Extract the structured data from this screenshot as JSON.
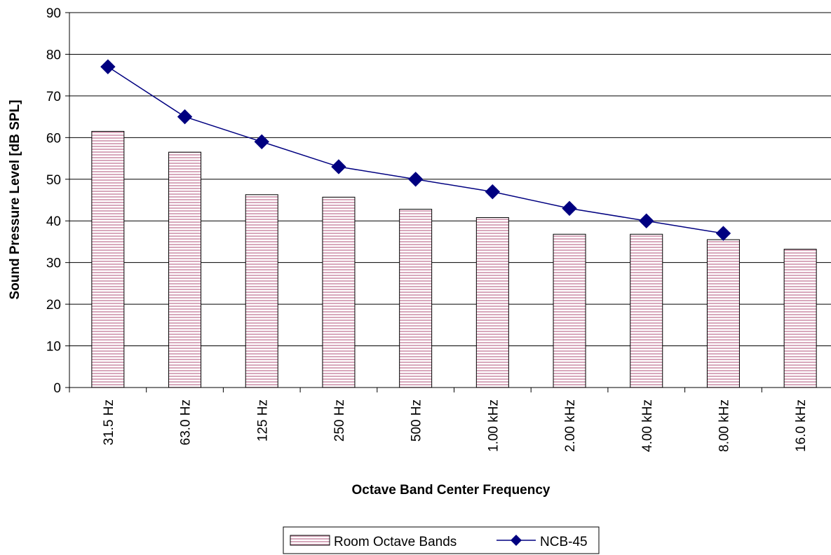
{
  "chart_data": {
    "type": "bar",
    "title": "",
    "xlabel": "Octave Band Center Frequency",
    "ylabel": "Sound Pressure Level [dB SPL]",
    "ylim": [
      0,
      90
    ],
    "yticks": [
      0,
      10,
      20,
      30,
      40,
      50,
      60,
      70,
      80,
      90
    ],
    "grid": true,
    "legend_position": "bottom",
    "categories": [
      "31.5 Hz",
      "63.0 Hz",
      "125 Hz",
      "250 Hz",
      "500 Hz",
      "1.00 kHz",
      "2.00 kHz",
      "4.00 kHz",
      "8.00 kHz",
      "16.0 kHz"
    ],
    "series": [
      {
        "name": "Room Octave Bands",
        "kind": "bar",
        "color": "#e8c8d4",
        "values": [
          61.5,
          56.5,
          46.3,
          45.7,
          42.8,
          40.8,
          36.8,
          36.8,
          35.5,
          33.2
        ]
      },
      {
        "name": "NCB-45",
        "kind": "line",
        "color": "#000080",
        "marker": "diamond",
        "values": [
          77,
          65,
          59,
          53,
          50,
          47,
          43,
          40,
          37,
          null
        ]
      }
    ]
  }
}
